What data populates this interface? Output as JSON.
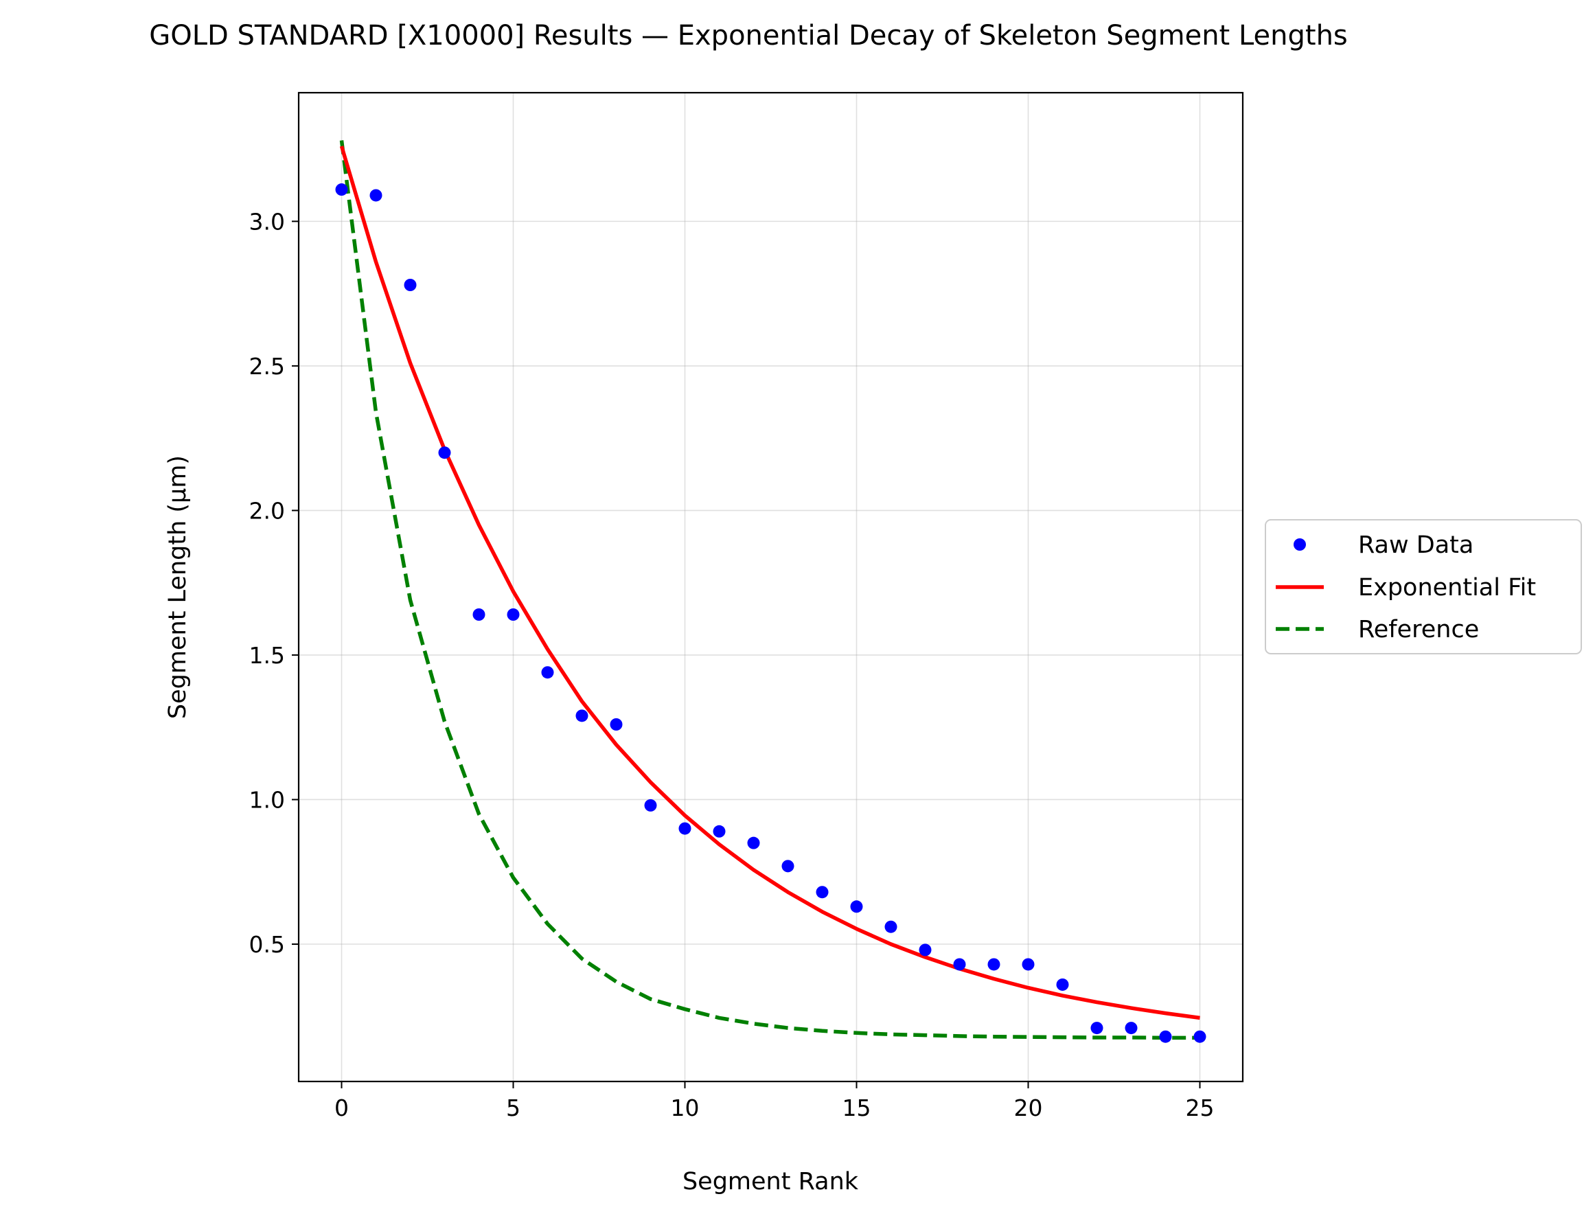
{
  "chart_data": {
    "type": "scatter",
    "title": "GOLD STANDARD [X10000] Results — Exponential Decay of Skeleton Segment Lengths",
    "xlabel": "Segment Rank",
    "ylabel": "Segment Length (μm)",
    "xlim": [
      -1.25,
      26.25
    ],
    "ylim": [
      0.025,
      3.445
    ],
    "xticks": [
      0,
      5,
      10,
      15,
      20,
      25
    ],
    "xtick_labels": [
      "0",
      "5",
      "10",
      "15",
      "20",
      "25"
    ],
    "yticks": [
      0.5,
      1.0,
      1.5,
      2.0,
      2.5,
      3.0
    ],
    "ytick_labels": [
      "0.5",
      "1.0",
      "1.5",
      "2.0",
      "2.5",
      "3.0"
    ],
    "grid": true,
    "legend_position": "outside-right",
    "series": [
      {
        "name": "Raw Data",
        "kind": "scatter",
        "color": "#0000ff",
        "x": [
          0,
          1,
          2,
          3,
          4,
          5,
          6,
          7,
          8,
          9,
          10,
          11,
          12,
          13,
          14,
          15,
          16,
          17,
          18,
          19,
          20,
          21,
          22,
          23,
          24,
          25
        ],
        "y": [
          3.11,
          3.09,
          2.78,
          2.2,
          1.64,
          1.64,
          1.44,
          1.29,
          1.26,
          0.98,
          0.9,
          0.89,
          0.85,
          0.77,
          0.68,
          0.63,
          0.56,
          0.48,
          0.43,
          0.43,
          0.43,
          0.36,
          0.21,
          0.21,
          0.18,
          0.18
        ]
      },
      {
        "name": "Exponential Fit",
        "kind": "line",
        "color": "#ff0000",
        "dash": "solid",
        "x": [
          0,
          1,
          2,
          3,
          4,
          5,
          6,
          7,
          8,
          9,
          10,
          11,
          12,
          13,
          14,
          15,
          16,
          17,
          18,
          19,
          20,
          21,
          22,
          23,
          24,
          25
        ],
        "y": [
          3.26,
          2.86,
          2.51,
          2.21,
          1.95,
          1.72,
          1.52,
          1.34,
          1.19,
          1.06,
          0.945,
          0.845,
          0.757,
          0.68,
          0.612,
          0.553,
          0.5,
          0.455,
          0.415,
          0.38,
          0.349,
          0.322,
          0.299,
          0.279,
          0.261,
          0.245
        ]
      },
      {
        "name": "Reference",
        "kind": "line",
        "color": "#008000",
        "dash": "dashed",
        "x": [
          0,
          1,
          2,
          3,
          4,
          5,
          6,
          7,
          8,
          9,
          10,
          11,
          12,
          13,
          14,
          15,
          16,
          17,
          18,
          19,
          20,
          21,
          22,
          23,
          24,
          25
        ],
        "y": [
          3.28,
          2.34,
          1.69,
          1.27,
          0.95,
          0.73,
          0.57,
          0.45,
          0.37,
          0.31,
          0.275,
          0.245,
          0.225,
          0.21,
          0.2,
          0.193,
          0.188,
          0.185,
          0.182,
          0.18,
          0.179,
          0.178,
          0.177,
          0.177,
          0.176,
          0.176
        ]
      }
    ]
  }
}
